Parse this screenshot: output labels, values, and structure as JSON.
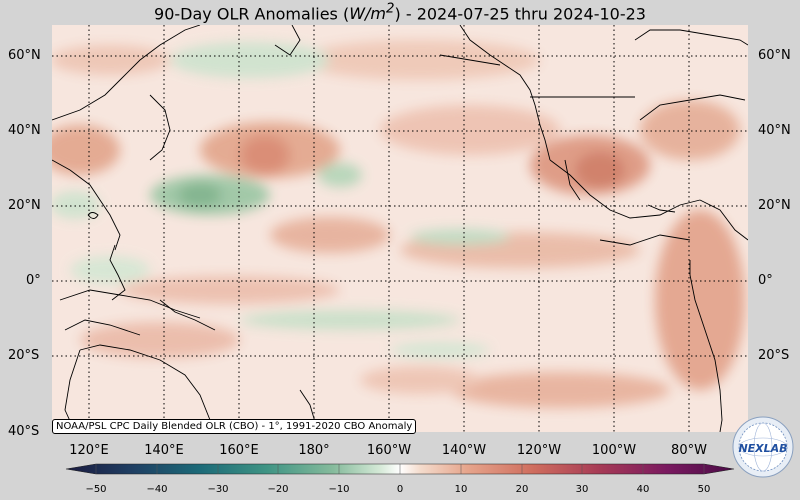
{
  "title": {
    "prefix": "90-Day OLR Anomalies (",
    "unit": "W/m",
    "sup": "2",
    "suffix": ") - 2024-07-25 thru 2024-10-23"
  },
  "lat_labels": [
    "60°N",
    "40°N",
    "20°N",
    "0°",
    "20°S",
    "40°S"
  ],
  "lon_labels": [
    "120°E",
    "140°E",
    "160°E",
    "180°",
    "160°W",
    "140°W",
    "120°W",
    "100°W",
    "80°W"
  ],
  "colorbar": {
    "ticks": [
      "−50",
      "−40",
      "−30",
      "−20",
      "−10",
      "0",
      "10",
      "20",
      "30",
      "40",
      "50"
    ],
    "colors": [
      "#1a1a3f",
      "#1f3f63",
      "#1c6a78",
      "#3f9484",
      "#86bb9c",
      "#cde3cf",
      "#ffffff",
      "#f2d2c0",
      "#e0967c",
      "#c55a52",
      "#9c2d55",
      "#73155e",
      "#4a0b46"
    ]
  },
  "credit": "NOAA/PSL CPC Daily Blended OLR (CBO) - 1°, 1991-2020 CBO Anomaly",
  "logo": {
    "text": "NEXLAB"
  }
}
